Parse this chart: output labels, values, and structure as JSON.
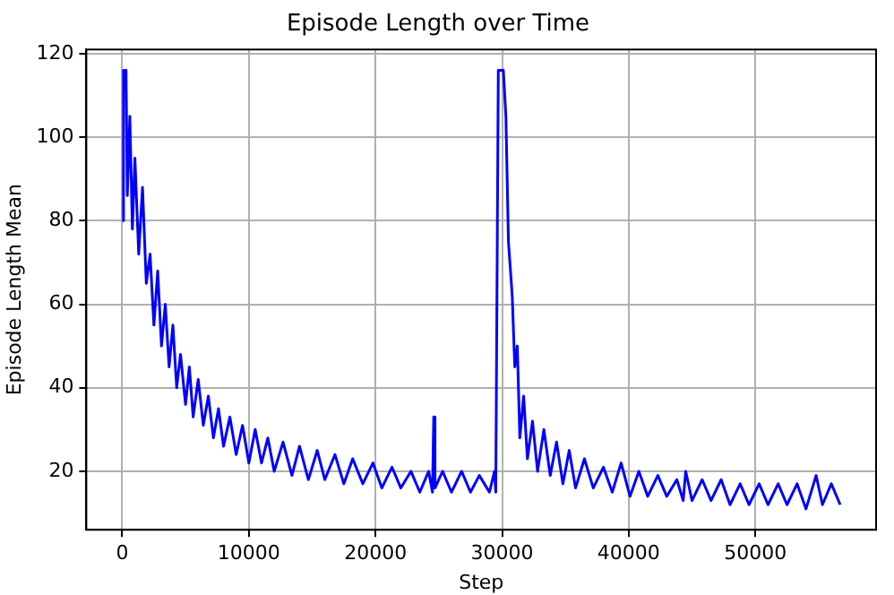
{
  "chart_data": {
    "type": "line",
    "title": "Episode Length over Time",
    "xlabel": "Step",
    "ylabel": "Episode Length Mean",
    "xlim": [
      -2835,
      59535
    ],
    "xticks": [
      0,
      10000,
      20000,
      30000,
      40000,
      50000
    ],
    "ylim": [
      6,
      121
    ],
    "yticks": [
      20,
      40,
      60,
      80,
      100,
      120
    ],
    "grid": true,
    "legend": false,
    "marker": "none",
    "line_style": "solid",
    "series": [
      {
        "color": "#0000ff",
        "x": [
          0,
          100,
          300,
          400,
          600,
          800,
          1000,
          1300,
          1600,
          1900,
          2200,
          2500,
          2800,
          3100,
          3400,
          3700,
          4000,
          4300,
          4600,
          5000,
          5300,
          5600,
          6000,
          6400,
          6800,
          7200,
          7600,
          8000,
          8500,
          9000,
          9500,
          10000,
          10500,
          11000,
          11500,
          12000,
          12700,
          13400,
          14000,
          14700,
          15400,
          16000,
          16800,
          17500,
          18200,
          19000,
          19800,
          20500,
          21300,
          22000,
          22800,
          23500,
          24200,
          24500,
          24600,
          24700,
          25300,
          26000,
          26800,
          27500,
          28200,
          29000,
          29400,
          29500,
          29700,
          30100,
          30300,
          30500,
          30800,
          31000,
          31200,
          31400,
          31700,
          32000,
          32400,
          32800,
          33300,
          33800,
          34300,
          34800,
          35300,
          35800,
          36500,
          37200,
          38000,
          38700,
          39400,
          40100,
          40800,
          41500,
          42300,
          43000,
          43800,
          44300,
          44500,
          45000,
          45800,
          46500,
          47300,
          48000,
          48800,
          49500,
          50300,
          51000,
          51800,
          52500,
          53300,
          54000,
          54800,
          55300,
          56000,
          56700
        ],
        "values": [
          80,
          116,
          116,
          86,
          105,
          78,
          95,
          72,
          88,
          65,
          72,
          55,
          68,
          50,
          60,
          45,
          55,
          40,
          48,
          36,
          45,
          33,
          42,
          31,
          38,
          28,
          35,
          26,
          33,
          24,
          31,
          22,
          30,
          22,
          28,
          20,
          27,
          19,
          26,
          18,
          25,
          18,
          24,
          17,
          23,
          17,
          22,
          16,
          21,
          16,
          20,
          15,
          20,
          15,
          33,
          16,
          20,
          15,
          20,
          15,
          19,
          15,
          20,
          15,
          116,
          116,
          105,
          75,
          62,
          45,
          50,
          28,
          38,
          23,
          32,
          20,
          30,
          19,
          27,
          17,
          25,
          16,
          23,
          16,
          21,
          15,
          22,
          14,
          20,
          14,
          19,
          14,
          18,
          13,
          20,
          13,
          18,
          13,
          18,
          12,
          17,
          12,
          17,
          12,
          17,
          12,
          17,
          11,
          19,
          12,
          17,
          12
        ]
      }
    ]
  }
}
